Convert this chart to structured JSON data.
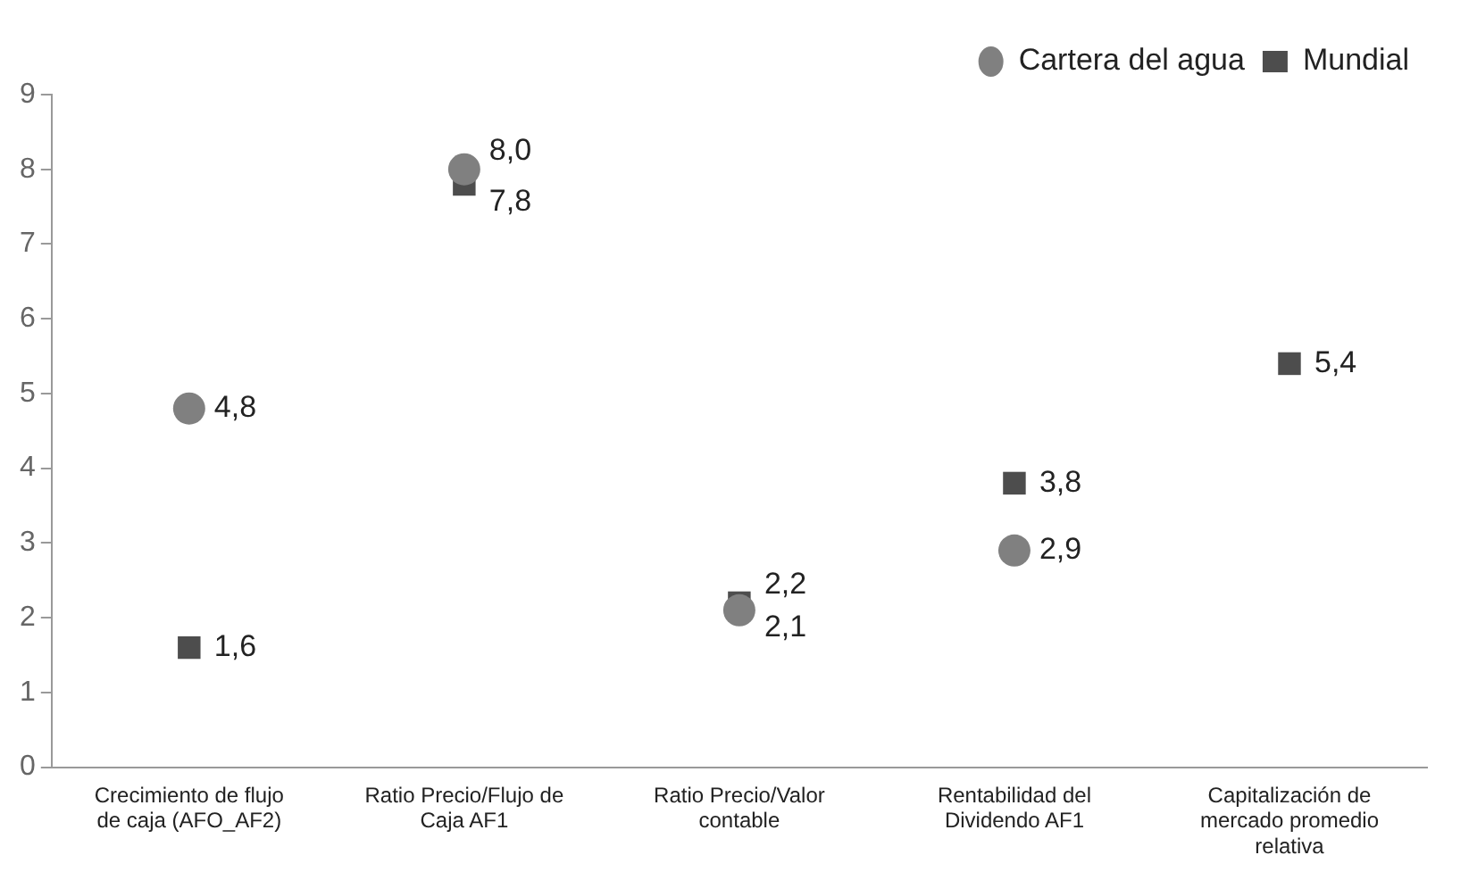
{
  "chart_data": {
    "type": "scatter",
    "categories": [
      "Crecimiento de flujo de caja (AFO_AF2)",
      "Ratio Precio/Flujo de Caja AF1",
      "Ratio Precio/Valor contable",
      "Rentabilidad del Dividendo AF1",
      "Capitalización de mercado promedio relativa"
    ],
    "series": [
      {
        "name": "Cartera del agua",
        "color": "#808080",
        "marker": "circle",
        "values": [
          4.8,
          8.0,
          2.1,
          2.9,
          null
        ],
        "value_labels": [
          "4,8",
          "8,0",
          "2,1",
          "2,9",
          null
        ]
      },
      {
        "name": "Mundial",
        "color": "#4d4d4d",
        "marker": "square",
        "values": [
          1.6,
          7.8,
          2.2,
          3.8,
          5.4
        ],
        "value_labels": [
          "1,6",
          "7,8",
          "2,2",
          "3,8",
          "5,4"
        ]
      }
    ],
    "ylim": [
      0,
      9
    ],
    "yticks": [
      0,
      1,
      2,
      3,
      4,
      5,
      6,
      7,
      8,
      9
    ],
    "grid": false,
    "legend": "top right"
  }
}
